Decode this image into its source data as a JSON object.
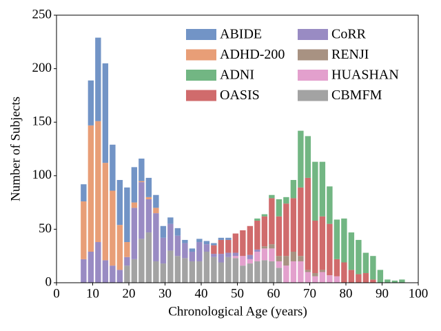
{
  "chart_data": {
    "type": "stacked_bar",
    "x_label": "Chronological Age (years)",
    "y_label": "Number of Subjects",
    "x": [
      7.5,
      9.5,
      11.5,
      13.5,
      15.5,
      17.5,
      19.5,
      21.5,
      23.5,
      25.5,
      27.5,
      29.5,
      31.5,
      33.5,
      35.5,
      37.5,
      39.5,
      41.5,
      43.5,
      45.5,
      47.5,
      49.5,
      51.5,
      53.5,
      55.5,
      57.5,
      59.5,
      61.5,
      63.5,
      65.5,
      67.5,
      69.5,
      71.5,
      73.5,
      75.5,
      77.5,
      79.5,
      81.5,
      83.5,
      85.5,
      87.5,
      89.5,
      91.5,
      93.5,
      95.5
    ],
    "series": [
      {
        "name": "ABIDE",
        "color": "#7294c6",
        "values": [
          16,
          42,
          78,
          93,
          43,
          42,
          51,
          33,
          21,
          18,
          12,
          11,
          6,
          7,
          3,
          3,
          3,
          3,
          2,
          2,
          2,
          0,
          0,
          0,
          0,
          0,
          0,
          0,
          0,
          0,
          0,
          0,
          0,
          0,
          0,
          0,
          0,
          0,
          0,
          0,
          0,
          0,
          0,
          0,
          0
        ]
      },
      {
        "name": "ADHD-200",
        "color": "#e89e77",
        "values": [
          54,
          118,
          113,
          91,
          70,
          42,
          14,
          5,
          1,
          2,
          5,
          0,
          0,
          0,
          0,
          0,
          0,
          0,
          0,
          0,
          0,
          0,
          0,
          0,
          0,
          0,
          0,
          0,
          0,
          0,
          0,
          0,
          0,
          0,
          0,
          0,
          0,
          0,
          0,
          0,
          0,
          0,
          0,
          0,
          0
        ]
      },
      {
        "name": "ADNI",
        "color": "#72b683",
        "values": [
          0,
          0,
          0,
          0,
          0,
          0,
          0,
          0,
          0,
          0,
          0,
          0,
          0,
          0,
          0,
          0,
          0,
          0,
          0,
          0,
          0,
          0,
          0,
          0,
          2,
          2,
          3,
          16,
          6,
          17,
          53,
          39,
          55,
          51,
          35,
          37,
          41,
          35,
          32,
          19,
          22,
          12,
          3,
          2,
          3
        ]
      },
      {
        "name": "OASIS",
        "color": "#d06b6c",
        "values": [
          0,
          0,
          0,
          0,
          0,
          0,
          0,
          0,
          0,
          0,
          0,
          0,
          0,
          0,
          0,
          0,
          0,
          0,
          8,
          13,
          12,
          18,
          24,
          27,
          27,
          28,
          43,
          37,
          49,
          50,
          64,
          86,
          49,
          50,
          48,
          16,
          19,
          12,
          8,
          9,
          3,
          0,
          0,
          0,
          0
        ]
      },
      {
        "name": "CoRR",
        "color": "#998bc3",
        "values": [
          22,
          29,
          38,
          21,
          16,
          12,
          8,
          48,
          53,
          31,
          45,
          24,
          25,
          19,
          14,
          9,
          18,
          7,
          3,
          8,
          4,
          3,
          0,
          4,
          2,
          0,
          0,
          0,
          0,
          0,
          0,
          0,
          0,
          0,
          0,
          0,
          0,
          0,
          0,
          0,
          0,
          0,
          0,
          0,
          0
        ]
      },
      {
        "name": "RENJI",
        "color": "#a89282",
        "values": [
          0,
          0,
          0,
          0,
          0,
          0,
          0,
          0,
          0,
          0,
          0,
          0,
          0,
          0,
          0,
          0,
          0,
          0,
          0,
          0,
          0,
          0,
          0,
          0,
          0,
          2,
          4,
          5,
          9,
          9,
          5,
          2,
          3,
          2,
          0,
          0,
          0,
          0,
          0,
          0,
          0,
          0,
          0,
          0,
          0
        ]
      },
      {
        "name": "HUASHAN",
        "color": "#e3a0cd",
        "values": [
          0,
          0,
          0,
          0,
          0,
          0,
          0,
          0,
          0,
          0,
          0,
          0,
          0,
          0,
          0,
          0,
          0,
          0,
          0,
          0,
          0,
          2,
          9,
          4,
          9,
          11,
          12,
          6,
          16,
          20,
          20,
          10,
          6,
          10,
          7,
          6,
          0,
          0,
          0,
          0,
          0,
          0,
          0,
          0,
          0
        ]
      },
      {
        "name": "CBMFM",
        "color": "#a3a3a3",
        "values": [
          0,
          0,
          0,
          0,
          0,
          0,
          16,
          22,
          41,
          47,
          20,
          18,
          30,
          25,
          23,
          20,
          20,
          29,
          24,
          19,
          24,
          23,
          16,
          18,
          20,
          21,
          20,
          14,
          0,
          0,
          0,
          0,
          0,
          0,
          0,
          0,
          0,
          0,
          0,
          0,
          0,
          0,
          0,
          0,
          0
        ]
      }
    ],
    "xlim": [
      0,
      100
    ],
    "xticks": [
      0,
      10,
      20,
      30,
      40,
      50,
      60,
      70,
      80,
      90,
      100
    ],
    "ylim": [
      0,
      250
    ],
    "yticks": [
      0,
      50,
      100,
      150,
      200,
      250
    ],
    "legend": "upper right"
  }
}
